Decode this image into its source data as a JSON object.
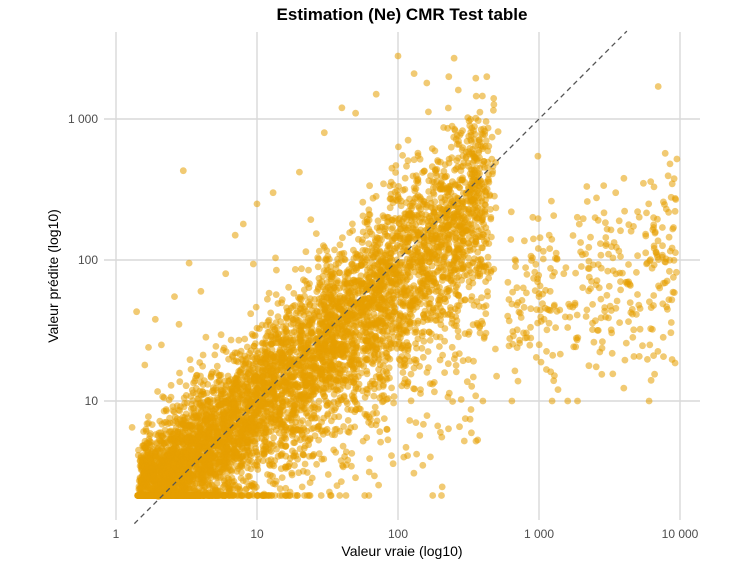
{
  "chart_data": {
    "type": "scatter",
    "title": "Estimation (Ne) CMR Test table",
    "xlabel": "Valeur vraie (log10)",
    "ylabel": "Valeur prédite (log10)",
    "x_scale": "log10",
    "y_scale": "log10",
    "xlim": [
      1,
      10000
    ],
    "ylim": [
      1.6,
      3600
    ],
    "x_ticks": [
      {
        "value": 1,
        "label": "1"
      },
      {
        "value": 10,
        "label": "10"
      },
      {
        "value": 100,
        "label": "100"
      },
      {
        "value": 1000,
        "label": "1 000"
      },
      {
        "value": 10000,
        "label": "10 000"
      }
    ],
    "y_ticks": [
      {
        "value": 10,
        "label": "10"
      },
      {
        "value": 100,
        "label": "100"
      },
      {
        "value": 1000,
        "label": "1 000"
      }
    ],
    "grid": true,
    "legend": "none",
    "point_color": "#E69F00",
    "point_opacity": 0.55,
    "reference_line": {
      "slope": 1,
      "intercept": 0,
      "style": "dashed",
      "color": "#555555"
    },
    "points": [
      [
        1.3,
        6.5
      ],
      [
        1.4,
        43
      ],
      [
        1.5,
        2.4
      ],
      [
        1.6,
        2.9
      ],
      [
        1.6,
        18
      ],
      [
        1.7,
        24
      ],
      [
        1.8,
        3.3
      ],
      [
        1.9,
        38
      ],
      [
        2.0,
        2.1
      ],
      [
        2.1,
        25
      ],
      [
        2.2,
        5.0
      ],
      [
        2.3,
        3.4
      ],
      [
        2.6,
        55
      ],
      [
        2.8,
        35
      ],
      [
        3.0,
        430
      ],
      [
        3.1,
        2.6
      ],
      [
        3.3,
        95
      ],
      [
        3.5,
        2.8
      ],
      [
        4.0,
        60
      ],
      [
        4.5,
        2.7
      ],
      [
        5.5,
        2.3
      ],
      [
        6.0,
        80
      ],
      [
        7.0,
        150
      ],
      [
        8.0,
        180
      ],
      [
        10,
        250
      ],
      [
        12,
        4.6
      ],
      [
        13,
        300
      ],
      [
        15,
        4.8
      ],
      [
        17,
        3.6
      ],
      [
        20,
        420
      ],
      [
        22,
        5.5
      ],
      [
        25,
        4.1
      ],
      [
        30,
        800
      ],
      [
        35,
        4.5
      ],
      [
        40,
        1200
      ],
      [
        45,
        6.0
      ],
      [
        50,
        1100
      ],
      [
        60,
        5.5
      ],
      [
        70,
        1500
      ],
      [
        80,
        7.5
      ],
      [
        90,
        4.1
      ],
      [
        100,
        2800
      ],
      [
        110,
        4.0
      ],
      [
        130,
        2100
      ],
      [
        150,
        3.5
      ],
      [
        160,
        1800
      ],
      [
        200,
        6.0
      ],
      [
        250,
        2700
      ],
      [
        300,
        7.5
      ],
      [
        400,
        10
      ],
      [
        500,
        15
      ],
      [
        600,
        40
      ],
      [
        700,
        32
      ],
      [
        800,
        28
      ],
      [
        1000,
        55
      ],
      [
        1200,
        60
      ],
      [
        1500,
        80
      ],
      [
        1800,
        48
      ],
      [
        2000,
        90
      ],
      [
        2200,
        260
      ],
      [
        2500,
        200
      ],
      [
        3000,
        130
      ],
      [
        3500,
        300
      ],
      [
        4000,
        380
      ],
      [
        4500,
        160
      ],
      [
        5000,
        220
      ],
      [
        5500,
        350
      ],
      [
        6000,
        250
      ],
      [
        6500,
        200
      ],
      [
        6500,
        170
      ],
      [
        7000,
        1700
      ],
      [
        7500,
        170
      ],
      [
        8000,
        230
      ],
      [
        8500,
        480
      ],
      [
        9000,
        170
      ],
      [
        9500,
        520
      ]
    ]
  }
}
